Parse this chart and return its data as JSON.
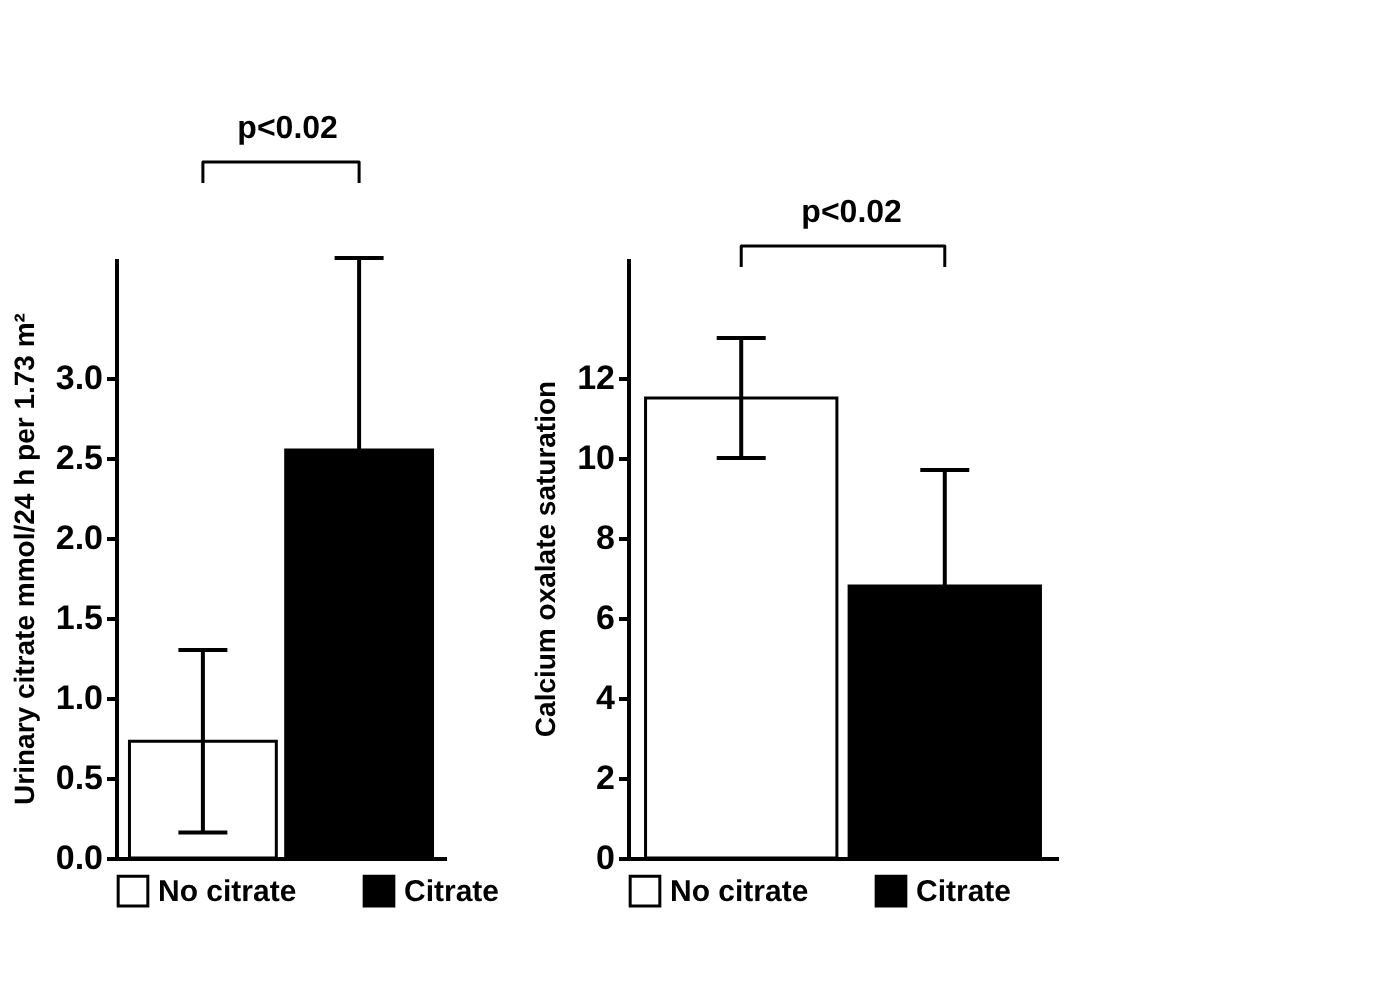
{
  "chart_data": [
    {
      "type": "bar",
      "categories": [
        null
      ],
      "ylabel": "Urinary citrate mmol/24 h per 1.73 m²",
      "ylim": [
        0,
        3.75
      ],
      "yticks": [
        {
          "value": 0,
          "label": "0.0"
        },
        {
          "value": 0.5,
          "label": "0.5"
        },
        {
          "value": 1,
          "label": "1.0"
        },
        {
          "value": 1.5,
          "label": "1.5"
        },
        {
          "value": 2,
          "label": "2.0"
        },
        {
          "value": 2.5,
          "label": "2.5"
        },
        {
          "value": 3,
          "label": "3.0"
        }
      ],
      "grid": false,
      "legend": "bottom",
      "annotations": [
        "p<0.02"
      ],
      "series": [
        {
          "name": "No citrate",
          "color": "#ffffff",
          "values": [
            0.73
          ],
          "errors": [
            0.57
          ]
        },
        {
          "name": "Citrate",
          "color": "#000000",
          "values": [
            2.55
          ],
          "errors": [
            1.2
          ]
        }
      ]
    },
    {
      "type": "bar",
      "categories": [
        null
      ],
      "ylabel": "Calcium oxalate saturation",
      "ylim": [
        0,
        15
      ],
      "yticks": [
        0,
        2,
        4,
        6,
        8,
        10,
        12
      ],
      "grid": false,
      "legend": "bottom",
      "annotations": [
        "p<0.02"
      ],
      "series": [
        {
          "name": "No citrate",
          "color": "#ffffff",
          "values": [
            11.5
          ],
          "errors": [
            1.5
          ]
        },
        {
          "name": "Citrate",
          "color": "#000000",
          "values": [
            6.8
          ],
          "errors": [
            2.9
          ]
        }
      ]
    }
  ]
}
